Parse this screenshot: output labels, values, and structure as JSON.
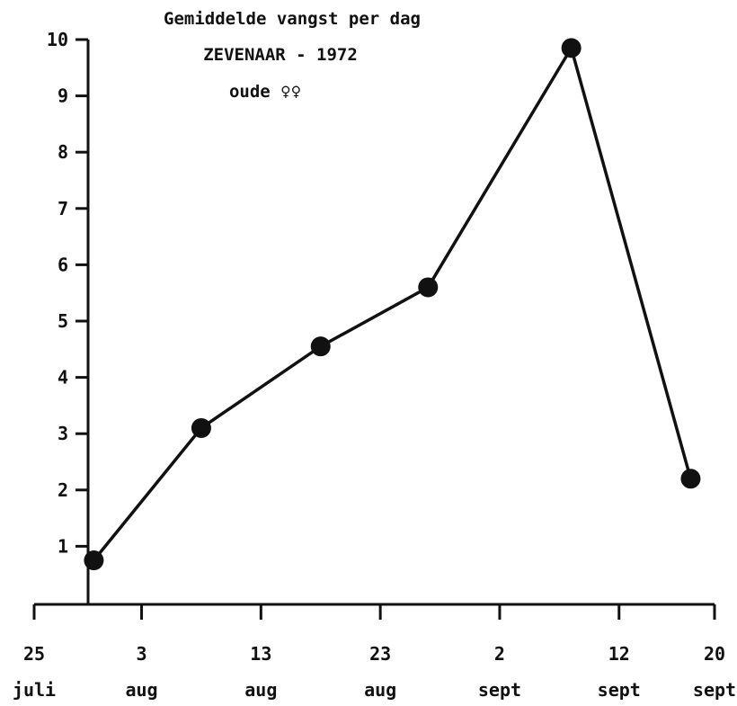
{
  "chart_data": {
    "type": "line",
    "title": [
      "Gemiddelde vangst per dag",
      "ZEVENAAR - 1972",
      "oude ♀♀"
    ],
    "xlabel": "",
    "ylabel": "",
    "x_ticks": [
      {
        "day": "25",
        "month": "juli"
      },
      {
        "day": "3",
        "month": "aug"
      },
      {
        "day": "13",
        "month": "aug"
      },
      {
        "day": "23",
        "month": "aug"
      },
      {
        "day": "2",
        "month": "sept"
      },
      {
        "day": "12",
        "month": "sept"
      },
      {
        "day": "20",
        "month": "sept"
      }
    ],
    "x_dates": [
      "1972-07-25",
      "1972-08-03",
      "1972-08-13",
      "1972-08-23",
      "1972-09-02",
      "1972-09-12",
      "1972-09-20"
    ],
    "y_ticks": [
      "1",
      "2",
      "3",
      "4",
      "5",
      "6",
      "7",
      "8",
      "9",
      "10"
    ],
    "ylim": [
      0,
      10
    ],
    "grid": false,
    "series": [
      {
        "points": [
          {
            "date": "1972-07-30",
            "value": 0.75
          },
          {
            "date": "1972-08-08",
            "value": 3.1
          },
          {
            "date": "1972-08-18",
            "value": 4.55
          },
          {
            "date": "1972-08-27",
            "value": 5.6
          },
          {
            "date": "1972-09-08",
            "value": 9.85
          },
          {
            "date": "1972-09-18",
            "value": 2.2
          }
        ]
      }
    ]
  }
}
